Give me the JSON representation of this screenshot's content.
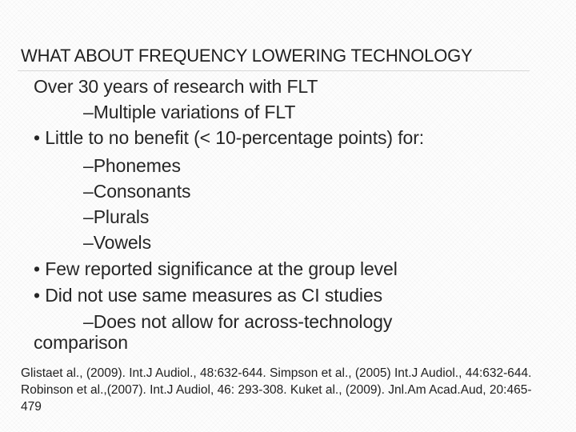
{
  "slide": {
    "title": "WHAT ABOUT FREQUENCY LOWERING TECHNOLOGY",
    "lines": [
      "Over 30 years of research with FLT",
      "–Multiple variations of FLT",
      "• Little to no benefit (< 10-percentage points) for:",
      "–Phonemes",
      "–Consonants",
      "–Plurals",
      "–Vowels",
      "• Few reported significance at the group level",
      "• Did not use same measures as CI studies",
      "–Does not allow for across-technology",
      "comparison"
    ],
    "citations": "Glistaet al., (2009). Int.J Audiol., 48:632-644. Simpson et al., (2005) Int.J Audiol., 44:632-644. Robinson et al.,(2007). Int.J Audiol, 46: 293-308. Kuket al., (2009). Jnl.Am Acad.Aud, 20:465-479"
  }
}
